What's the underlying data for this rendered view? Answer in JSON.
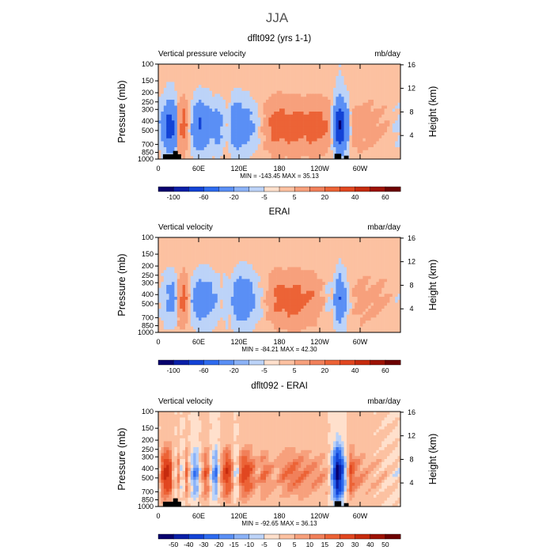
{
  "figure": {
    "season": "JJA",
    "colors": {
      "text": "#000000",
      "suptitle": "#555555"
    }
  },
  "chart_data": [
    {
      "type": "heatmap",
      "title": "dflt092 (yrs 1-1)",
      "left_label": "Vertical pressure velocity",
      "right_label": "mb/day",
      "xlabel": "",
      "ylabel": "Pressure (mb)",
      "ylabel_right": "Height (km)",
      "x_ticks": [
        "0",
        "60E",
        "120E",
        "180",
        "120W",
        "60W"
      ],
      "y_ticks": [
        "100",
        "150",
        "200",
        "250",
        "300",
        "400",
        "500",
        "700",
        "850",
        "1000"
      ],
      "height_ticks": [
        "4",
        "8",
        "12",
        "16"
      ],
      "stats": {
        "min_label": "MIN =",
        "min": "-143.45",
        "max_label": "MAX =",
        "max": "35.13"
      },
      "colorbar": {
        "labels": [
          "-100",
          "-60",
          "-20",
          "-5",
          "5",
          "20",
          "40",
          "60"
        ],
        "colors": [
          "#08006e",
          "#0a1fa8",
          "#1343d6",
          "#2e6bef",
          "#5a8ff5",
          "#8bb2f7",
          "#bcd3f8",
          "#ffe0cc",
          "#fcc1a1",
          "#f7a07c",
          "#f1805a",
          "#ec6336",
          "#e14720",
          "#c62b0e",
          "#9d1205",
          "#6d0000"
        ]
      },
      "profiles": [
        {
          "lon": 0,
          "v": -10
        },
        {
          "lon": 8,
          "v": -35
        },
        {
          "lon": 16,
          "v": -80
        },
        {
          "lon": 24,
          "v": -60
        },
        {
          "lon": 30,
          "v": 15
        },
        {
          "lon": 38,
          "v": 30
        },
        {
          "lon": 44,
          "v": 8
        },
        {
          "lon": 52,
          "v": -30
        },
        {
          "lon": 62,
          "v": -60
        },
        {
          "lon": 72,
          "v": -45
        },
        {
          "lon": 80,
          "v": -25
        },
        {
          "lon": 88,
          "v": -35
        },
        {
          "lon": 96,
          "v": -18
        },
        {
          "lon": 104,
          "v": -5
        },
        {
          "lon": 110,
          "v": -35
        },
        {
          "lon": 118,
          "v": -50
        },
        {
          "lon": 126,
          "v": -40
        },
        {
          "lon": 134,
          "v": -30
        },
        {
          "lon": 142,
          "v": -18
        },
        {
          "lon": 150,
          "v": -5
        },
        {
          "lon": 160,
          "v": 12
        },
        {
          "lon": 172,
          "v": 26
        },
        {
          "lon": 186,
          "v": 30
        },
        {
          "lon": 200,
          "v": 27
        },
        {
          "lon": 214,
          "v": 26
        },
        {
          "lon": 228,
          "v": 30
        },
        {
          "lon": 240,
          "v": 26
        },
        {
          "lon": 250,
          "v": 22
        },
        {
          "lon": 256,
          "v": 5
        },
        {
          "lon": 262,
          "v": -40
        },
        {
          "lon": 268,
          "v": -110
        },
        {
          "lon": 276,
          "v": -70
        },
        {
          "lon": 282,
          "v": -30
        },
        {
          "lon": 288,
          "v": 10
        },
        {
          "lon": 296,
          "v": 15
        },
        {
          "lon": 306,
          "v": 10
        },
        {
          "lon": 316,
          "v": 12
        },
        {
          "lon": 328,
          "v": 8
        },
        {
          "lon": 340,
          "v": 5
        },
        {
          "lon": 350,
          "v": -5
        },
        {
          "lon": 360,
          "v": -10
        }
      ],
      "topography": [
        {
          "lon0": 7,
          "lon1": 34,
          "p": 890
        },
        {
          "lon0": 22,
          "lon1": 29,
          "p": 820
        },
        {
          "lon0": 97,
          "lon1": 99,
          "p": 900
        },
        {
          "lon0": 262,
          "lon1": 272,
          "p": 880
        },
        {
          "lon0": 276,
          "lon1": 283,
          "p": 920
        }
      ]
    },
    {
      "type": "heatmap",
      "title": "ERAI",
      "left_label": "Vertical velocity",
      "right_label": "mbar/day",
      "xlabel": "",
      "ylabel": "Pressure (mb)",
      "ylabel_right": "Height (km)",
      "x_ticks": [
        "0",
        "60E",
        "120E",
        "180",
        "120W",
        "60W"
      ],
      "y_ticks": [
        "100",
        "150",
        "200",
        "250",
        "300",
        "400",
        "500",
        "700",
        "850",
        "1000"
      ],
      "height_ticks": [
        "4",
        "8",
        "12",
        "16"
      ],
      "stats": {
        "min_label": "MIN =",
        "min": "-84.21",
        "max_label": "MAX =",
        "max": "42.30"
      },
      "colorbar": {
        "labels": [
          "-100",
          "-60",
          "-20",
          "-5",
          "5",
          "20",
          "40",
          "60"
        ],
        "colors": [
          "#08006e",
          "#0a1fa8",
          "#1343d6",
          "#2e6bef",
          "#5a8ff5",
          "#8bb2f7",
          "#bcd3f8",
          "#ffe0cc",
          "#fcc1a1",
          "#f7a07c",
          "#f1805a",
          "#ec6336",
          "#e14720",
          "#c62b0e",
          "#9d1205",
          "#6d0000"
        ]
      },
      "profiles": [
        {
          "lon": 0,
          "v": -5
        },
        {
          "lon": 8,
          "v": -15
        },
        {
          "lon": 16,
          "v": -25
        },
        {
          "lon": 24,
          "v": -30
        },
        {
          "lon": 30,
          "v": 12
        },
        {
          "lon": 38,
          "v": 28
        },
        {
          "lon": 44,
          "v": 10
        },
        {
          "lon": 52,
          "v": -25
        },
        {
          "lon": 62,
          "v": -40
        },
        {
          "lon": 72,
          "v": -35
        },
        {
          "lon": 80,
          "v": -25
        },
        {
          "lon": 88,
          "v": -15
        },
        {
          "lon": 94,
          "v": -5
        },
        {
          "lon": 100,
          "v": -20
        },
        {
          "lon": 106,
          "v": -10
        },
        {
          "lon": 114,
          "v": -30
        },
        {
          "lon": 122,
          "v": -45
        },
        {
          "lon": 130,
          "v": -45
        },
        {
          "lon": 138,
          "v": -30
        },
        {
          "lon": 146,
          "v": -15
        },
        {
          "lon": 154,
          "v": -5
        },
        {
          "lon": 164,
          "v": 10
        },
        {
          "lon": 178,
          "v": 25
        },
        {
          "lon": 192,
          "v": 28
        },
        {
          "lon": 206,
          "v": 26
        },
        {
          "lon": 220,
          "v": 22
        },
        {
          "lon": 232,
          "v": 18
        },
        {
          "lon": 240,
          "v": 10
        },
        {
          "lon": 246,
          "v": 5
        },
        {
          "lon": 252,
          "v": -10
        },
        {
          "lon": 258,
          "v": -5
        },
        {
          "lon": 264,
          "v": -30
        },
        {
          "lon": 270,
          "v": -55
        },
        {
          "lon": 276,
          "v": -30
        },
        {
          "lon": 282,
          "v": -10
        },
        {
          "lon": 290,
          "v": 5
        },
        {
          "lon": 300,
          "v": 12
        },
        {
          "lon": 312,
          "v": 8
        },
        {
          "lon": 326,
          "v": 10
        },
        {
          "lon": 340,
          "v": 5
        },
        {
          "lon": 360,
          "v": -5
        }
      ],
      "topography": []
    },
    {
      "type": "heatmap",
      "title": "dflt092 - ERAI",
      "left_label": "Vertical velocity",
      "right_label": "mbar/day",
      "xlabel": "",
      "ylabel": "Pressure (mb)",
      "ylabel_right": "Height (km)",
      "x_ticks": [
        "0",
        "60E",
        "120E",
        "180",
        "120W",
        "60W"
      ],
      "y_ticks": [
        "100",
        "150",
        "200",
        "250",
        "300",
        "400",
        "500",
        "700",
        "850",
        "1000"
      ],
      "height_ticks": [
        "4",
        "8",
        "12",
        "16"
      ],
      "stats": {
        "min_label": "MIN =",
        "min": "-92.65",
        "max_label": "MAX =",
        "max": "36.13"
      },
      "colorbar": {
        "labels": [
          "-50",
          "-40",
          "-30",
          "-20",
          "-15",
          "-10",
          "-5",
          "0",
          "5",
          "10",
          "15",
          "20",
          "30",
          "40",
          "50"
        ],
        "colors": [
          "#08006e",
          "#0a1fa8",
          "#1343d6",
          "#2e6bef",
          "#5a8ff5",
          "#8bb2f7",
          "#bcd3f8",
          "#ffe0cc",
          "#fcc1a1",
          "#f7a07c",
          "#f1805a",
          "#ec6336",
          "#e14720",
          "#c62b0e",
          "#9d1205",
          "#6d0000"
        ]
      },
      "profiles": [
        {
          "lon": 0,
          "v": -5
        },
        {
          "lon": 6,
          "v": 20
        },
        {
          "lon": 12,
          "v": 35
        },
        {
          "lon": 18,
          "v": 25
        },
        {
          "lon": 24,
          "v": -5
        },
        {
          "lon": 30,
          "v": 10
        },
        {
          "lon": 36,
          "v": -10
        },
        {
          "lon": 42,
          "v": 15
        },
        {
          "lon": 48,
          "v": -5
        },
        {
          "lon": 56,
          "v": -20
        },
        {
          "lon": 64,
          "v": 5
        },
        {
          "lon": 72,
          "v": 20
        },
        {
          "lon": 80,
          "v": -10
        },
        {
          "lon": 86,
          "v": -20
        },
        {
          "lon": 92,
          "v": 5
        },
        {
          "lon": 98,
          "v": 20
        },
        {
          "lon": 104,
          "v": 30
        },
        {
          "lon": 110,
          "v": 10
        },
        {
          "lon": 116,
          "v": -10
        },
        {
          "lon": 122,
          "v": 15
        },
        {
          "lon": 128,
          "v": 25
        },
        {
          "lon": 134,
          "v": 20
        },
        {
          "lon": 140,
          "v": 15
        },
        {
          "lon": 148,
          "v": 5
        },
        {
          "lon": 156,
          "v": 15
        },
        {
          "lon": 164,
          "v": 10
        },
        {
          "lon": 174,
          "v": 5
        },
        {
          "lon": 186,
          "v": 12
        },
        {
          "lon": 200,
          "v": 15
        },
        {
          "lon": 214,
          "v": 12
        },
        {
          "lon": 228,
          "v": 10
        },
        {
          "lon": 242,
          "v": 8
        },
        {
          "lon": 252,
          "v": 5
        },
        {
          "lon": 260,
          "v": -20
        },
        {
          "lon": 266,
          "v": -55
        },
        {
          "lon": 272,
          "v": -40
        },
        {
          "lon": 278,
          "v": -10
        },
        {
          "lon": 286,
          "v": 20
        },
        {
          "lon": 296,
          "v": 10
        },
        {
          "lon": 312,
          "v": 5
        },
        {
          "lon": 330,
          "v": 3
        },
        {
          "lon": 345,
          "v": 0
        },
        {
          "lon": 360,
          "v": -3
        }
      ],
      "topography": [
        {
          "lon0": 7,
          "lon1": 34,
          "p": 890
        },
        {
          "lon0": 22,
          "lon1": 29,
          "p": 820
        },
        {
          "lon0": 97,
          "lon1": 99,
          "p": 900
        },
        {
          "lon0": 262,
          "lon1": 272,
          "p": 880
        },
        {
          "lon0": 276,
          "lon1": 283,
          "p": 920
        }
      ]
    }
  ]
}
